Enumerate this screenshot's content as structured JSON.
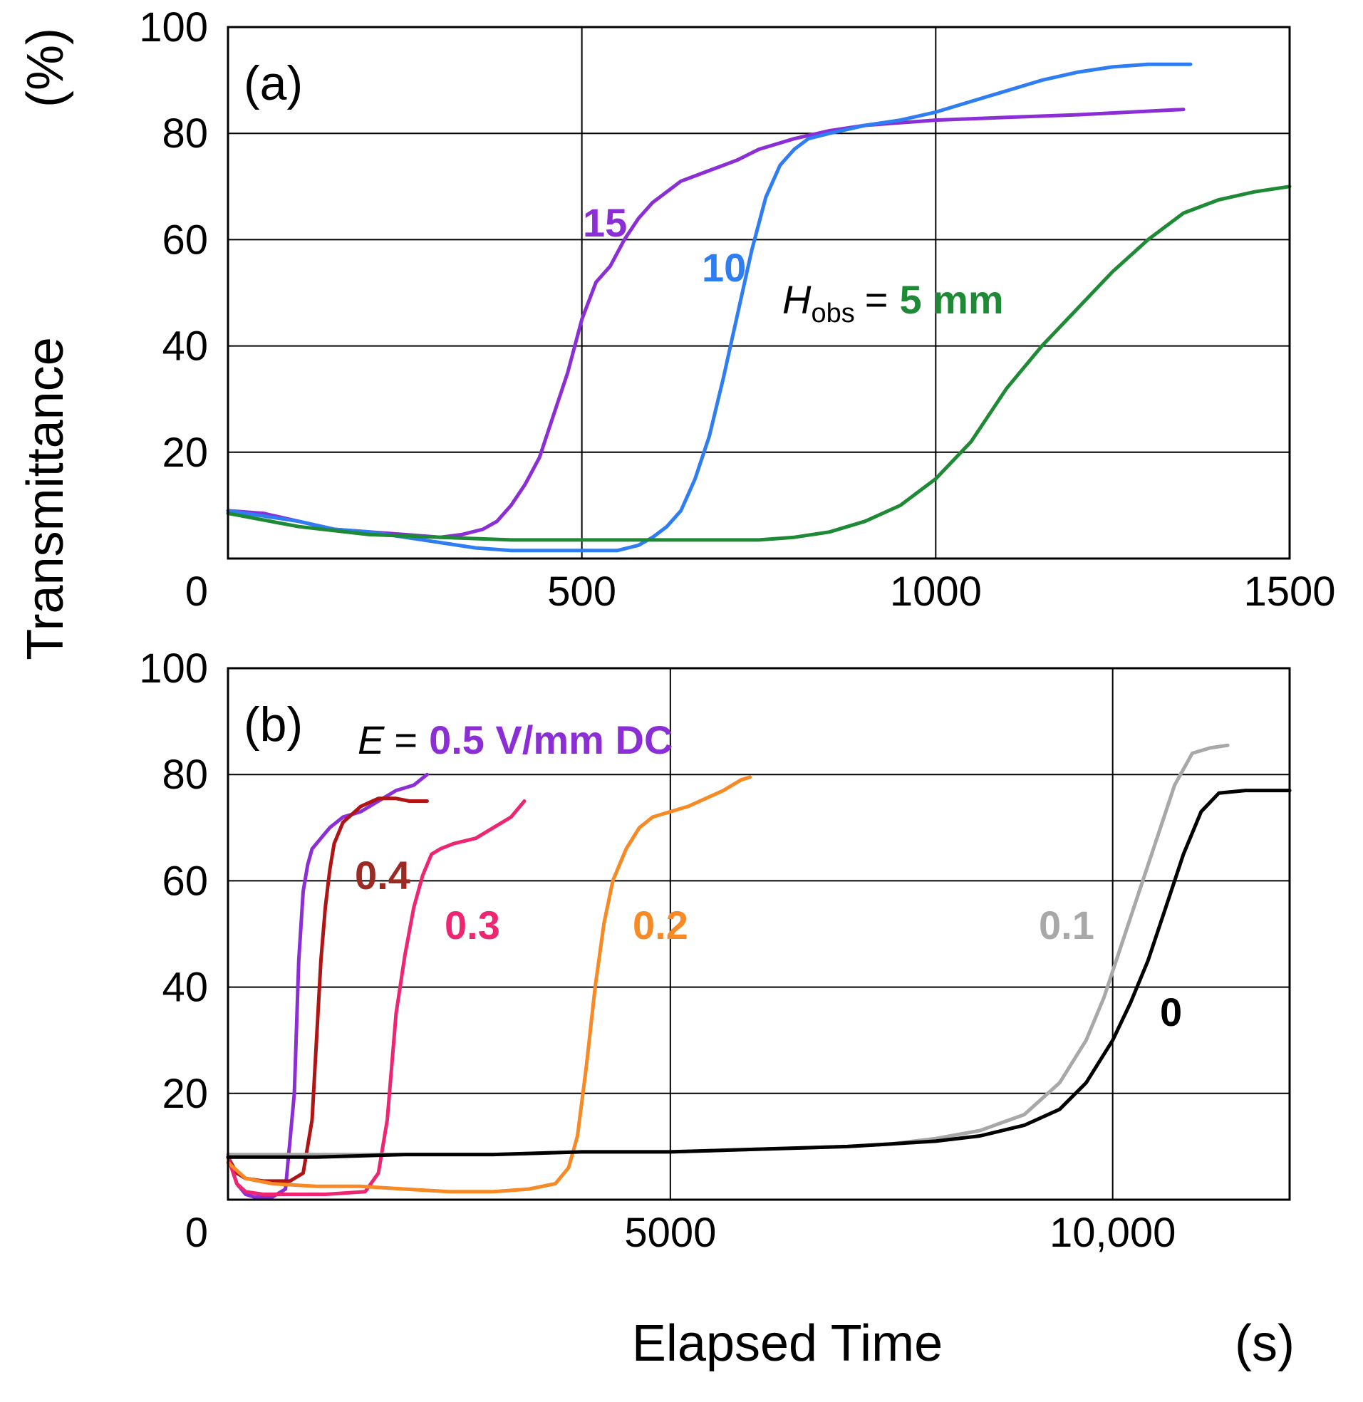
{
  "figure": {
    "ylabel": "Transmittance",
    "ylabel_unit": "(%)",
    "xlabel": "Elapsed Time",
    "xlabel_unit": "(s)"
  },
  "chart_data": [
    {
      "type": "line",
      "panel_label": "(a)",
      "xlim": [
        0,
        1500
      ],
      "ylim": [
        0,
        100
      ],
      "xticks": [
        0,
        500,
        1000,
        1500
      ],
      "xtick_labels": [
        "0",
        "500",
        "1000",
        "1500"
      ],
      "yticks": [
        20,
        40,
        60,
        80,
        100
      ],
      "ytick_labels": [
        "20",
        "40",
        "60",
        "80",
        "100"
      ],
      "grid": true,
      "annotation": {
        "prefix": "H",
        "subscript": "obs",
        "equals": "=",
        "value": "5 mm",
        "value_color": "#1e8a36"
      },
      "series": [
        {
          "name": "15",
          "color": "#8c2ed6",
          "x": [
            0,
            50,
            100,
            150,
            200,
            250,
            300,
            330,
            360,
            380,
            400,
            420,
            440,
            460,
            480,
            500,
            520,
            540,
            560,
            580,
            600,
            620,
            640,
            660,
            680,
            700,
            720,
            750,
            800,
            850,
            900,
            950,
            1000,
            1100,
            1200,
            1350
          ],
          "y": [
            9,
            8.5,
            7,
            5.5,
            5,
            4.5,
            4,
            4.5,
            5.5,
            7,
            10,
            14,
            19,
            27,
            35,
            45,
            52,
            55,
            60,
            64,
            67,
            69,
            71,
            72,
            73,
            74,
            75,
            77,
            79,
            80.5,
            81.5,
            82,
            82.5,
            83,
            83.5,
            84.5
          ]
        },
        {
          "name": "10",
          "color": "#2e7df2",
          "x": [
            0,
            50,
            100,
            150,
            200,
            250,
            300,
            350,
            400,
            450,
            500,
            550,
            580,
            600,
            620,
            640,
            660,
            680,
            700,
            720,
            740,
            760,
            780,
            800,
            820,
            850,
            900,
            950,
            1000,
            1050,
            1100,
            1150,
            1200,
            1250,
            1300,
            1360
          ],
          "y": [
            9,
            8,
            7,
            5.5,
            5,
            4,
            3,
            2,
            1.5,
            1.5,
            1.5,
            1.5,
            2.5,
            4,
            6,
            9,
            15,
            23,
            34,
            46,
            58,
            68,
            74,
            77,
            79,
            80,
            81.5,
            82.5,
            84,
            86,
            88,
            90,
            91.5,
            92.5,
            93,
            93
          ]
        },
        {
          "name": "5 mm",
          "color": "#1e8a36",
          "x": [
            0,
            100,
            200,
            300,
            400,
            500,
            600,
            700,
            750,
            800,
            850,
            900,
            950,
            1000,
            1050,
            1100,
            1150,
            1200,
            1250,
            1300,
            1350,
            1400,
            1450,
            1500
          ],
          "y": [
            8.5,
            6,
            4.5,
            4,
            3.5,
            3.5,
            3.5,
            3.5,
            3.5,
            4,
            5,
            7,
            10,
            15,
            22,
            32,
            40,
            47,
            54,
            60,
            65,
            67.5,
            69,
            70
          ]
        }
      ],
      "labels": [
        {
          "text": "15",
          "color": "#8c2ed6"
        },
        {
          "text": "10",
          "color": "#2e7df2"
        }
      ]
    },
    {
      "type": "line",
      "panel_label": "(b)",
      "xlim": [
        0,
        12000
      ],
      "ylim": [
        0,
        100
      ],
      "xticks": [
        0,
        5000,
        10000
      ],
      "xtick_labels": [
        "0",
        "5000",
        "10,000"
      ],
      "yticks": [
        20,
        40,
        60,
        80,
        100
      ],
      "ytick_labels": [
        "20",
        "40",
        "60",
        "80",
        "100"
      ],
      "grid": true,
      "annotation": {
        "prefix": "E",
        "equals": "=",
        "value": "0.5 V/mm DC",
        "value_color": "#8c2ed6"
      },
      "series": [
        {
          "name": "0.5 V/mm DC",
          "color": "#8c2ed6",
          "x": [
            0,
            100,
            200,
            300,
            500,
            650,
            750,
            800,
            850,
            900,
            950,
            1050,
            1150,
            1300,
            1500,
            1700,
            1900,
            2100,
            2250
          ],
          "y": [
            8,
            3,
            1,
            0.5,
            0.5,
            2,
            20,
            45,
            58,
            63,
            66,
            68,
            70,
            72,
            73,
            75,
            77,
            78,
            80
          ]
        },
        {
          "name": "0.4",
          "color": "#b01414",
          "x": [
            0,
            100,
            200,
            400,
            700,
            850,
            950,
            1000,
            1050,
            1100,
            1150,
            1200,
            1300,
            1500,
            1700,
            1900,
            2050,
            2250
          ],
          "y": [
            8,
            5,
            4,
            3.5,
            3.5,
            5,
            15,
            30,
            45,
            55,
            62,
            67,
            71,
            74,
            75.5,
            75.5,
            75,
            75
          ]
        },
        {
          "name": "0.3",
          "color": "#ee2672",
          "x": [
            0,
            100,
            200,
            400,
            800,
            1100,
            1550,
            1700,
            1800,
            1900,
            2000,
            2100,
            2200,
            2300,
            2400,
            2550,
            2800,
            3000,
            3200,
            3350
          ],
          "y": [
            8,
            3,
            1.5,
            1,
            1,
            1,
            1.5,
            5,
            15,
            35,
            46,
            55,
            61,
            65,
            66,
            67,
            68,
            70,
            72,
            75
          ]
        },
        {
          "name": "0.2",
          "color": "#f78a24",
          "x": [
            0,
            200,
            500,
            1000,
            1500,
            2000,
            2500,
            3000,
            3400,
            3700,
            3850,
            3950,
            4050,
            4150,
            4250,
            4350,
            4500,
            4650,
            4800,
            5000,
            5200,
            5400,
            5600,
            5800,
            5900
          ],
          "y": [
            7,
            4,
            3,
            2.5,
            2.5,
            2,
            1.5,
            1.5,
            2,
            3,
            6,
            12,
            25,
            40,
            52,
            60,
            66,
            70,
            72,
            73,
            74,
            75.5,
            77,
            79,
            79.5
          ]
        },
        {
          "name": "0.1",
          "color": "#a8a8a8",
          "x": [
            0,
            1000,
            2000,
            3000,
            4000,
            5000,
            6000,
            7000,
            7500,
            8000,
            8500,
            9000,
            9400,
            9700,
            9900,
            10100,
            10300,
            10500,
            10700,
            10900,
            11100,
            11300
          ],
          "y": [
            8.5,
            8.5,
            8.5,
            8.5,
            9,
            9,
            9.5,
            10,
            10.5,
            11.5,
            13,
            16,
            22,
            30,
            38,
            48,
            58,
            68,
            78,
            84,
            85,
            85.5
          ]
        },
        {
          "name": "0",
          "color": "#000000",
          "x": [
            0,
            1000,
            2000,
            3000,
            4000,
            5000,
            6000,
            7000,
            7500,
            8000,
            8500,
            9000,
            9400,
            9700,
            10000,
            10200,
            10400,
            10600,
            10800,
            11000,
            11200,
            11500,
            12000
          ],
          "y": [
            8,
            8,
            8.5,
            8.5,
            9,
            9,
            9.5,
            10,
            10.5,
            11,
            12,
            14,
            17,
            22,
            30,
            37,
            45,
            55,
            65,
            73,
            76.5,
            77,
            77
          ]
        }
      ],
      "labels": [
        {
          "text": "0.4",
          "color": "#9c2a22"
        },
        {
          "text": "0.3",
          "color": "#ee2672"
        },
        {
          "text": "0.2",
          "color": "#f78a24"
        },
        {
          "text": "0.1",
          "color": "#a8a8a8"
        },
        {
          "text": "0",
          "color": "#000000"
        }
      ]
    }
  ]
}
